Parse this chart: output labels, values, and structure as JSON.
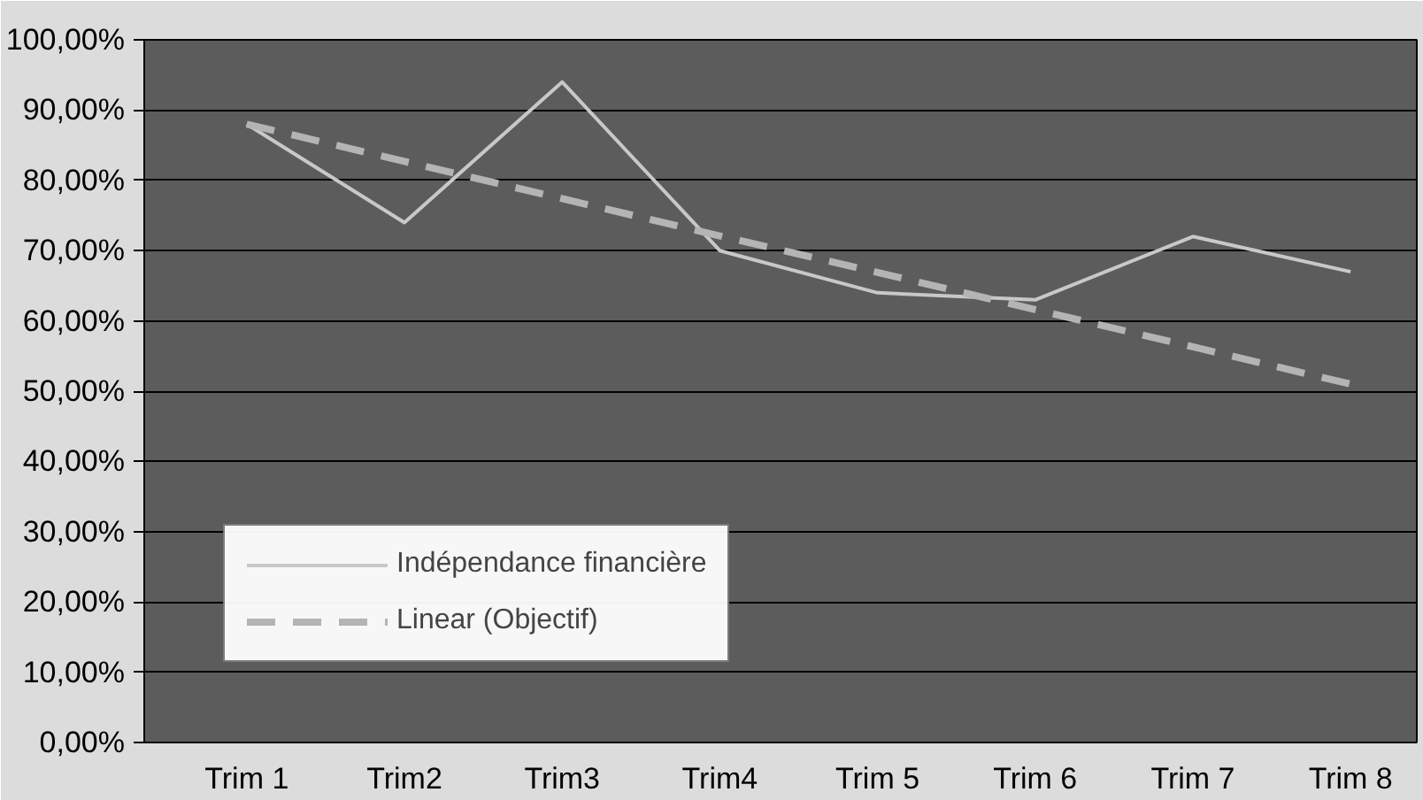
{
  "chart_data": {
    "type": "line",
    "categories": [
      "Trim 1",
      "Trim2",
      "Trim3",
      "Trim4",
      "Trim 5",
      "Trim 6",
      "Trim 7",
      "Trim 8"
    ],
    "series": [
      {
        "name": "Indépendance financière",
        "color": "#c8c8c8",
        "line_style": "solid",
        "values": [
          88,
          74,
          94,
          70,
          64,
          63,
          72,
          67
        ]
      },
      {
        "name": "Linear (Objectif)",
        "color": "#b4b4b4",
        "line_style": "dashed",
        "values": [
          88,
          82.7,
          77.4,
          72.1,
          66.9,
          61.6,
          56.3,
          51
        ]
      }
    ],
    "ylim": [
      0,
      100
    ],
    "yticks": [
      {
        "value": 0,
        "label": "0,00%"
      },
      {
        "value": 10,
        "label": "10,00%"
      },
      {
        "value": 20,
        "label": "20,00%"
      },
      {
        "value": 30,
        "label": "30,00%"
      },
      {
        "value": 40,
        "label": "40,00%"
      },
      {
        "value": 50,
        "label": "50,00%"
      },
      {
        "value": 60,
        "label": "60,00%"
      },
      {
        "value": 70,
        "label": "70,00%"
      },
      {
        "value": 80,
        "label": "80,00%"
      },
      {
        "value": 90,
        "label": "90,00%"
      },
      {
        "value": 100,
        "label": "100,00%"
      }
    ],
    "grid": "y",
    "legend": "bottom left"
  }
}
